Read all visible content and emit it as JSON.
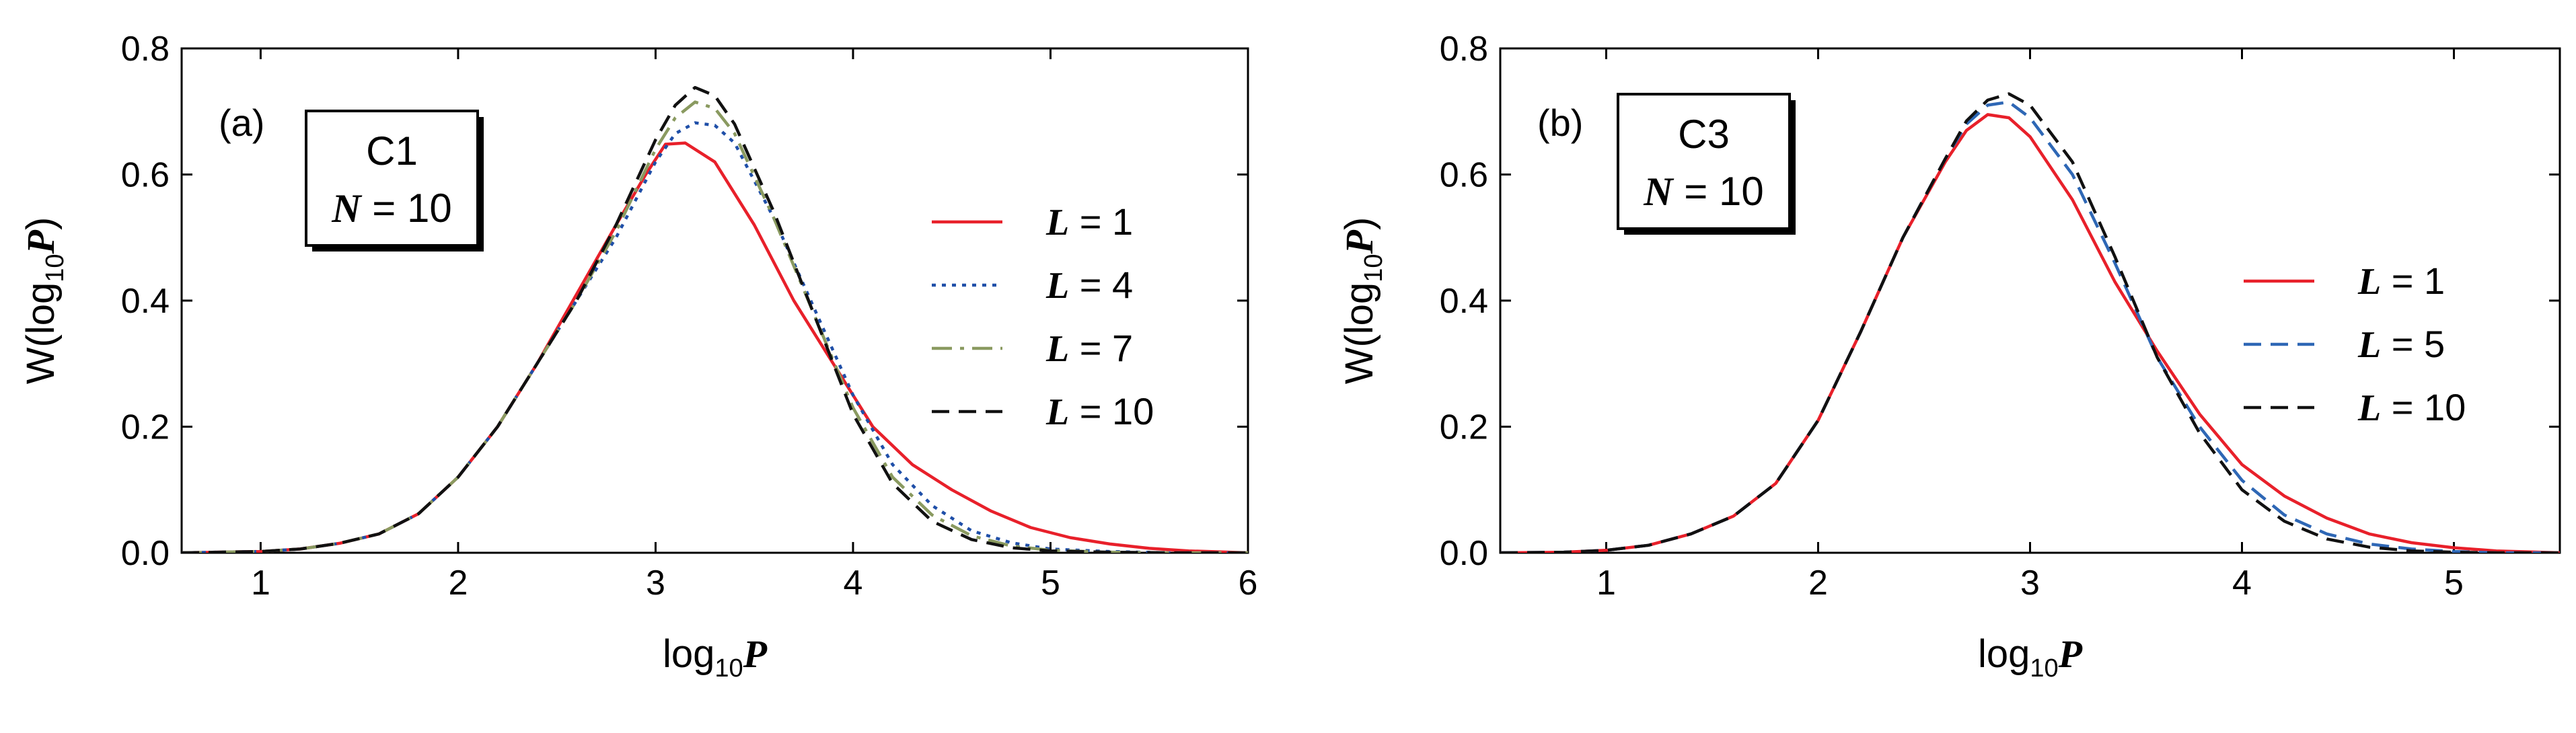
{
  "chart_data": [
    {
      "type": "line",
      "panel_label": "(a)",
      "box_title": "C1",
      "box_param_symbol": "N",
      "box_param_value": "= 10",
      "ylabel_main": "W(log",
      "ylabel_sub": "10",
      "ylabel_var": "P",
      "ylabel_close": ")",
      "xlabel_main": "log",
      "xlabel_sub": "10",
      "xlabel_var": "P",
      "xlim": [
        0.6,
        6
      ],
      "ylim": [
        0,
        0.8
      ],
      "xticks": [
        1,
        2,
        3,
        4,
        5,
        6
      ],
      "yticks": [
        0.0,
        0.2,
        0.4,
        0.6,
        0.8
      ],
      "ytick_labels": [
        "0.0",
        "0.2",
        "0.4",
        "0.6",
        "0.8"
      ],
      "legend_position": "right",
      "series": [
        {
          "name": "L = 1",
          "legend_symbol": "L",
          "legend_value": "= 1",
          "color": "#e8202a",
          "style": "solid",
          "x": [
            0.6,
            1.0,
            1.2,
            1.4,
            1.6,
            1.8,
            2.0,
            2.2,
            2.4,
            2.6,
            2.8,
            2.95,
            3.05,
            3.15,
            3.3,
            3.5,
            3.7,
            3.9,
            4.1,
            4.3,
            4.5,
            4.7,
            4.9,
            5.1,
            5.3,
            5.5,
            5.7,
            6.0
          ],
          "y": [
            0.0,
            0.002,
            0.006,
            0.015,
            0.03,
            0.062,
            0.12,
            0.2,
            0.3,
            0.41,
            0.52,
            0.6,
            0.648,
            0.65,
            0.62,
            0.52,
            0.4,
            0.3,
            0.2,
            0.14,
            0.1,
            0.066,
            0.04,
            0.024,
            0.014,
            0.007,
            0.003,
            0.0
          ]
        },
        {
          "name": "L = 4",
          "legend_symbol": "L",
          "legend_value": "= 4",
          "color": "#1f4fa8",
          "style": "dotted",
          "x": [
            0.6,
            1.0,
            1.2,
            1.4,
            1.6,
            1.8,
            2.0,
            2.2,
            2.4,
            2.6,
            2.8,
            3.0,
            3.1,
            3.2,
            3.3,
            3.4,
            3.6,
            3.8,
            4.0,
            4.2,
            4.4,
            4.6,
            4.8,
            5.0,
            5.3,
            5.6,
            6.0
          ],
          "y": [
            0.0,
            0.002,
            0.006,
            0.015,
            0.03,
            0.062,
            0.12,
            0.2,
            0.3,
            0.4,
            0.5,
            0.62,
            0.665,
            0.682,
            0.678,
            0.65,
            0.53,
            0.39,
            0.25,
            0.14,
            0.075,
            0.035,
            0.016,
            0.006,
            0.002,
            0.0,
            0.0
          ]
        },
        {
          "name": "L = 7",
          "legend_symbol": "L",
          "legend_value": "= 7",
          "color": "#8a9a60",
          "style": "dashdot",
          "x": [
            0.6,
            1.0,
            1.2,
            1.4,
            1.6,
            1.8,
            2.0,
            2.2,
            2.4,
            2.6,
            2.8,
            3.0,
            3.1,
            3.2,
            3.3,
            3.4,
            3.6,
            3.8,
            4.0,
            4.2,
            4.4,
            4.6,
            4.8,
            5.0,
            5.3,
            5.6,
            6.0
          ],
          "y": [
            0.0,
            0.002,
            0.006,
            0.015,
            0.03,
            0.062,
            0.12,
            0.2,
            0.3,
            0.4,
            0.51,
            0.64,
            0.69,
            0.715,
            0.705,
            0.665,
            0.53,
            0.38,
            0.23,
            0.12,
            0.06,
            0.027,
            0.011,
            0.004,
            0.001,
            0.0,
            0.0
          ]
        },
        {
          "name": "L = 10",
          "legend_symbol": "L",
          "legend_value": "= 10",
          "color": "#111111",
          "style": "dashed",
          "x": [
            0.6,
            1.0,
            1.2,
            1.4,
            1.6,
            1.8,
            2.0,
            2.2,
            2.4,
            2.6,
            2.8,
            3.0,
            3.1,
            3.2,
            3.3,
            3.4,
            3.6,
            3.8,
            4.0,
            4.2,
            4.4,
            4.6,
            4.8,
            5.0,
            5.3,
            5.6,
            6.0
          ],
          "y": [
            0.0,
            0.002,
            0.006,
            0.015,
            0.03,
            0.062,
            0.12,
            0.2,
            0.3,
            0.4,
            0.52,
            0.655,
            0.71,
            0.738,
            0.725,
            0.68,
            0.54,
            0.38,
            0.22,
            0.11,
            0.05,
            0.021,
            0.008,
            0.003,
            0.001,
            0.0,
            0.0
          ]
        }
      ]
    },
    {
      "type": "line",
      "panel_label": "(b)",
      "box_title": "C3",
      "box_param_symbol": "N",
      "box_param_value": "= 10",
      "ylabel_main": "W(log",
      "ylabel_sub": "10",
      "ylabel_var": "P",
      "ylabel_close": ")",
      "xlabel_main": "log",
      "xlabel_sub": "10",
      "xlabel_var": "P",
      "xlim": [
        0.5,
        5.5
      ],
      "ylim": [
        0,
        0.8
      ],
      "xticks": [
        1,
        2,
        3,
        4,
        5
      ],
      "yticks": [
        0.0,
        0.2,
        0.4,
        0.6,
        0.8
      ],
      "ytick_labels": [
        "0.0",
        "0.2",
        "0.4",
        "0.6",
        "0.8"
      ],
      "legend_position": "right",
      "series": [
        {
          "name": "L = 1",
          "legend_symbol": "L",
          "legend_value": "= 1",
          "color": "#e8202a",
          "style": "solid",
          "x": [
            0.5,
            0.8,
            1.0,
            1.2,
            1.4,
            1.6,
            1.8,
            2.0,
            2.2,
            2.4,
            2.6,
            2.7,
            2.8,
            2.9,
            3.0,
            3.2,
            3.4,
            3.6,
            3.8,
            4.0,
            4.2,
            4.4,
            4.6,
            4.8,
            5.0,
            5.2,
            5.5
          ],
          "y": [
            0.0,
            0.001,
            0.004,
            0.012,
            0.03,
            0.058,
            0.11,
            0.21,
            0.35,
            0.5,
            0.62,
            0.67,
            0.695,
            0.69,
            0.66,
            0.56,
            0.43,
            0.32,
            0.22,
            0.14,
            0.09,
            0.055,
            0.03,
            0.016,
            0.008,
            0.003,
            0.0
          ]
        },
        {
          "name": "L = 5",
          "legend_symbol": "L",
          "legend_value": "= 5",
          "color": "#2e67b5",
          "style": "dashed",
          "x": [
            0.5,
            0.8,
            1.0,
            1.2,
            1.4,
            1.6,
            1.8,
            2.0,
            2.2,
            2.4,
            2.6,
            2.7,
            2.8,
            2.9,
            3.0,
            3.2,
            3.4,
            3.6,
            3.8,
            4.0,
            4.2,
            4.4,
            4.6,
            4.8,
            5.0,
            5.2,
            5.5
          ],
          "y": [
            0.0,
            0.001,
            0.004,
            0.012,
            0.03,
            0.058,
            0.11,
            0.21,
            0.35,
            0.5,
            0.625,
            0.68,
            0.71,
            0.715,
            0.69,
            0.6,
            0.46,
            0.31,
            0.2,
            0.115,
            0.06,
            0.03,
            0.014,
            0.006,
            0.002,
            0.0,
            0.0
          ]
        },
        {
          "name": "L = 10",
          "legend_symbol": "L",
          "legend_value": "= 10",
          "color": "#111111",
          "style": "dashed",
          "x": [
            0.5,
            0.8,
            1.0,
            1.2,
            1.4,
            1.6,
            1.8,
            2.0,
            2.2,
            2.4,
            2.6,
            2.7,
            2.8,
            2.9,
            3.0,
            3.2,
            3.4,
            3.6,
            3.8,
            4.0,
            4.2,
            4.4,
            4.6,
            4.8,
            5.0,
            5.2,
            5.5
          ],
          "y": [
            0.0,
            0.001,
            0.004,
            0.012,
            0.03,
            0.058,
            0.11,
            0.21,
            0.35,
            0.5,
            0.625,
            0.685,
            0.718,
            0.728,
            0.71,
            0.62,
            0.47,
            0.31,
            0.19,
            0.1,
            0.05,
            0.022,
            0.009,
            0.003,
            0.001,
            0.0,
            0.0
          ]
        }
      ]
    }
  ]
}
